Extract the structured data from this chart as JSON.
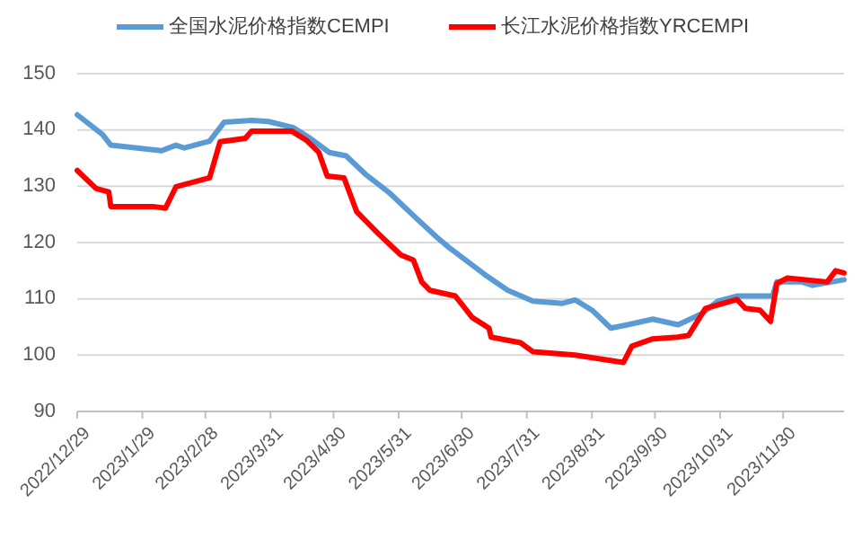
{
  "chart_data": {
    "type": "line",
    "legend": "top",
    "grid": "y",
    "line_style": "solid",
    "xlim": [
      "2022-12-29",
      "2023-12-29"
    ],
    "xticks": [
      {
        "value": "2022-12-29",
        "label": "2022/12/29"
      },
      {
        "value": "2023-01-29",
        "label": "2023/1/29"
      },
      {
        "value": "2023-02-28",
        "label": "2023/2/28"
      },
      {
        "value": "2023-03-31",
        "label": "2023/3/31"
      },
      {
        "value": "2023-04-30",
        "label": "2023/4/30"
      },
      {
        "value": "2023-05-31",
        "label": "2023/5/31"
      },
      {
        "value": "2023-06-30",
        "label": "2023/6/30"
      },
      {
        "value": "2023-07-31",
        "label": "2023/7/31"
      },
      {
        "value": "2023-08-31",
        "label": "2023/8/31"
      },
      {
        "value": "2023-09-30",
        "label": "2023/9/30"
      },
      {
        "value": "2023-10-31",
        "label": "2023/10/31"
      },
      {
        "value": "2023-11-30",
        "label": "2023/11/30"
      }
    ],
    "ylim": [
      90,
      150
    ],
    "yticks": [
      90,
      100,
      110,
      120,
      130,
      140,
      150
    ],
    "series": [
      {
        "name": "全国水泥价格指数CEMPI",
        "color": "#5b9bd5",
        "x": [
          "2022-12-29",
          "2023-01-10",
          "2023-01-14",
          "2023-02-07",
          "2023-02-14",
          "2023-02-18",
          "2023-03-02",
          "2023-03-09",
          "2023-03-22",
          "2023-03-30",
          "2023-04-11",
          "2023-04-19",
          "2023-04-28",
          "2023-05-06",
          "2023-05-15",
          "2023-05-27",
          "2023-06-07",
          "2023-06-18",
          "2023-06-24",
          "2023-07-11",
          "2023-07-22",
          "2023-08-03",
          "2023-08-17",
          "2023-08-23",
          "2023-08-31",
          "2023-09-09",
          "2023-09-17",
          "2023-09-29",
          "2023-10-11",
          "2023-10-22",
          "2023-10-30",
          "2023-11-08",
          "2023-11-25",
          "2023-11-27",
          "2023-12-09",
          "2023-12-14",
          "2023-12-29"
        ],
        "values": [
          142.7,
          139.2,
          137.3,
          136.3,
          137.3,
          136.8,
          138,
          141.4,
          141.7,
          141.5,
          140.4,
          138.5,
          136,
          135.4,
          132.2,
          128.7,
          124.8,
          121,
          119.1,
          114.3,
          111.5,
          109.6,
          109.2,
          109.8,
          108,
          104.8,
          105.4,
          106.4,
          105.4,
          107.3,
          109.6,
          110.5,
          110.5,
          113,
          113,
          112.4,
          113.4
        ]
      },
      {
        "name": "长江水泥价格指数YRCEMPI",
        "color": "#ff0000",
        "x": [
          "2022-12-29",
          "2023-01-07",
          "2023-01-13",
          "2023-01-14",
          "2023-02-03",
          "2023-02-09",
          "2023-02-14",
          "2023-02-24",
          "2023-03-02",
          "2023-03-07",
          "2023-03-19",
          "2023-03-22",
          "2023-04-10",
          "2023-04-17",
          "2023-04-23",
          "2023-04-27",
          "2023-05-05",
          "2023-05-11",
          "2023-05-21",
          "2023-06-01",
          "2023-06-07",
          "2023-06-11",
          "2023-06-15",
          "2023-06-27",
          "2023-07-05",
          "2023-07-13",
          "2023-07-14",
          "2023-07-28",
          "2023-08-03",
          "2023-08-23",
          "2023-09-15",
          "2023-09-19",
          "2023-09-29",
          "2023-10-11",
          "2023-10-16",
          "2023-10-24",
          "2023-11-08",
          "2023-11-12",
          "2023-11-19",
          "2023-11-24",
          "2023-11-27",
          "2023-12-02",
          "2023-12-21",
          "2023-12-25",
          "2023-12-29"
        ],
        "values": [
          132.8,
          129.6,
          129,
          126.4,
          126.4,
          126.1,
          129.9,
          130.9,
          131.5,
          137.9,
          138.5,
          139.8,
          139.8,
          138.2,
          136,
          131.8,
          131.5,
          125.5,
          121.7,
          117.8,
          116.9,
          113,
          111.5,
          110.5,
          106.7,
          104.8,
          103.2,
          102.2,
          100.6,
          100,
          98.7,
          101.6,
          102.9,
          103.2,
          103.5,
          108.3,
          109.9,
          108.3,
          108,
          106,
          112.7,
          113.7,
          113,
          115,
          114.6
        ]
      }
    ]
  }
}
